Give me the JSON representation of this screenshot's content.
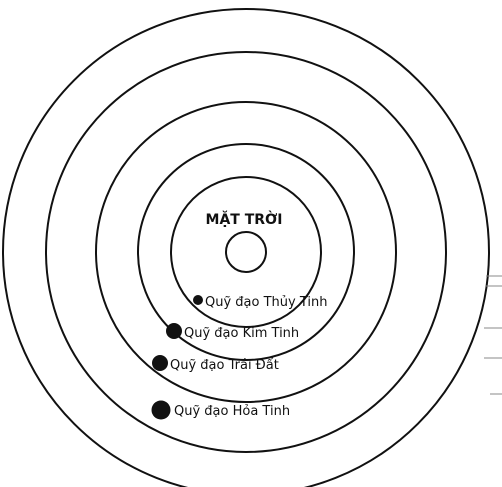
{
  "sun": {
    "label": "MẶT TRỜI"
  },
  "orbits": [
    {
      "label": "Quỹ đạo Thủy Tinh"
    },
    {
      "label": "Quỹ đạo Kim Tinh"
    },
    {
      "label": "Quỹ đạo Trái Đất"
    },
    {
      "label": "Quỹ đạo Hỏa Tinh"
    }
  ],
  "colors": {
    "ink": "#111111",
    "background": "#ffffff"
  }
}
